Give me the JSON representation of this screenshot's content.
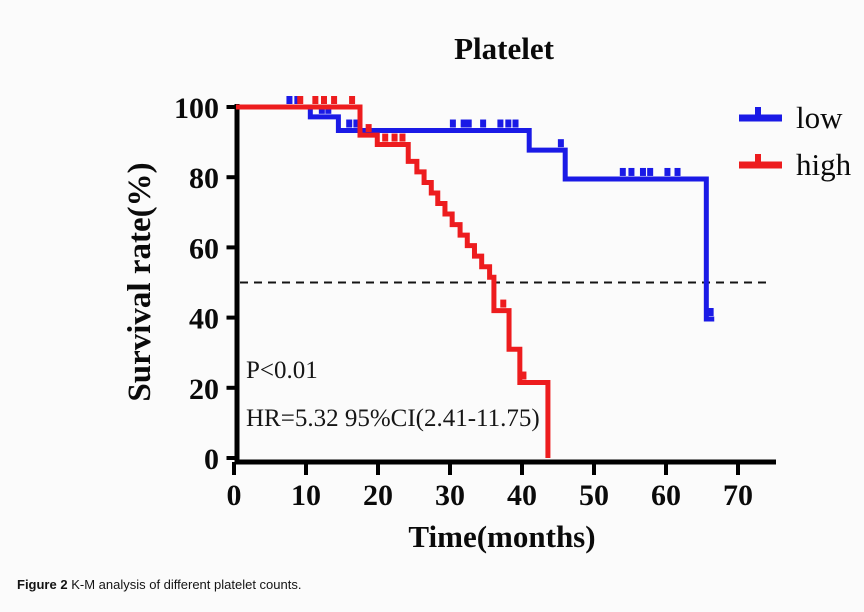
{
  "caption": {
    "label": "Figure 2",
    "text": " K-M analysis of different platelet counts."
  },
  "annotations": {
    "p_value": "P<0.01",
    "hazard_ratio": "HR=5.32 95%CI(2.41-11.75)"
  },
  "chart_data": {
    "type": "line",
    "subtype": "kaplan-meier-survival-step",
    "title": "Platelet",
    "xlabel": "Time(months)",
    "ylabel": "Survival rate(%)",
    "xlim": [
      0,
      75
    ],
    "ylim": [
      0,
      100
    ],
    "x_ticks": [
      0,
      10,
      20,
      30,
      40,
      50,
      60,
      70
    ],
    "y_ticks": [
      0,
      20,
      40,
      60,
      80,
      100
    ],
    "grid": false,
    "axis_color": "#000000",
    "reference_line": {
      "y": 50,
      "style": "dashed",
      "color": "#141414"
    },
    "legend": {
      "position": "top-right",
      "entries": [
        "low",
        "high"
      ]
    },
    "series": [
      {
        "name": "low",
        "color": "#1a1ae6",
        "steps": [
          [
            0,
            100
          ],
          [
            10.6,
            97.2
          ],
          [
            14.5,
            93.3
          ],
          [
            41,
            87.7
          ],
          [
            46,
            79.5
          ],
          [
            65.6,
            39.6
          ]
        ],
        "end_time": 66.7,
        "censor_marks": [
          [
            7.7,
            100
          ],
          [
            8.8,
            100
          ],
          [
            12.2,
            97.2
          ],
          [
            13.1,
            97.2
          ],
          [
            16,
            93.3
          ],
          [
            17,
            93.3
          ],
          [
            30.4,
            93.3
          ],
          [
            31.9,
            93.3
          ],
          [
            32.6,
            93.3
          ],
          [
            34.6,
            93.3
          ],
          [
            37,
            93.3
          ],
          [
            38.1,
            93.3
          ],
          [
            39.1,
            93.3
          ],
          [
            45.4,
            87.7
          ],
          [
            54,
            79.5
          ],
          [
            55.2,
            79.5
          ],
          [
            56.8,
            79.5
          ],
          [
            57.8,
            79.5
          ],
          [
            60.2,
            79.5
          ],
          [
            61.6,
            79.5
          ],
          [
            66.2,
            39.6
          ]
        ]
      },
      {
        "name": "high",
        "color": "#ed1c1e",
        "steps": [
          [
            0,
            100
          ],
          [
            17.5,
            92
          ],
          [
            19.9,
            89.3
          ],
          [
            24.2,
            84.5
          ],
          [
            25.4,
            81.5
          ],
          [
            26.4,
            78.5
          ],
          [
            27.4,
            75.5
          ],
          [
            28.3,
            72.5
          ],
          [
            29.3,
            69.5
          ],
          [
            30.3,
            66.5
          ],
          [
            31.4,
            63.5
          ],
          [
            32.4,
            60.5
          ],
          [
            33.4,
            57.5
          ],
          [
            34.4,
            54.5
          ],
          [
            35.5,
            51.5
          ],
          [
            36.1,
            42
          ],
          [
            38.2,
            31
          ],
          [
            39.7,
            21.5
          ],
          [
            43.6,
            0
          ]
        ],
        "end_time": 43.6,
        "censor_marks": [
          [
            9.2,
            100
          ],
          [
            11.3,
            100
          ],
          [
            12.5,
            100
          ],
          [
            13.9,
            100
          ],
          [
            16.4,
            100
          ],
          [
            18.7,
            92
          ],
          [
            21,
            89.3
          ],
          [
            22.3,
            89.3
          ],
          [
            23.4,
            89.3
          ],
          [
            37.4,
            42
          ],
          [
            40.2,
            21.5
          ]
        ]
      }
    ]
  }
}
